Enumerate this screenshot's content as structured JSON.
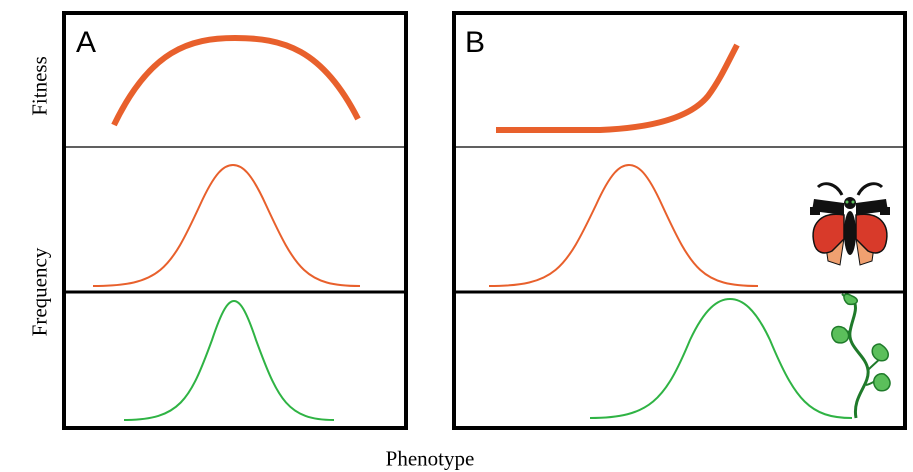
{
  "labels": {
    "y_top": "Fitness",
    "y_bottom": "Frequency",
    "x": "Phenotype"
  },
  "panels": [
    {
      "id": "A",
      "letter": "A",
      "fitness_shape": "stabilizing-arch"
    },
    {
      "id": "B",
      "letter": "B",
      "fitness_shape": "directional-rising"
    }
  ],
  "colors": {
    "fitness_curve": "#e8602c",
    "population_curve_orange": "#e8602c",
    "population_curve_green": "#2fb344",
    "frame": "#000000",
    "moth_red": "#d83a2a",
    "moth_wing_light": "#f0a070",
    "moth_black": "#111111",
    "leaf_green": "#5bbf5b",
    "leaf_dark": "#1f7a2a"
  },
  "icons": {
    "species_top": "moth-icon",
    "species_bottom": "vine-plant-icon"
  }
}
